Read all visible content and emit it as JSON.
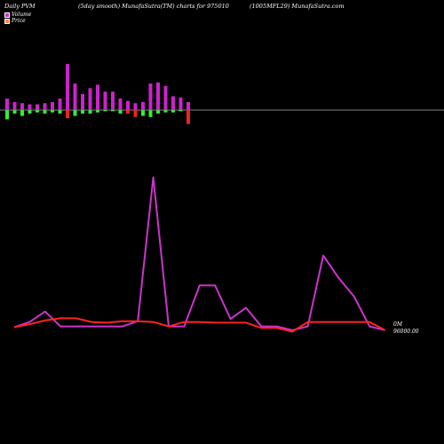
{
  "header": {
    "left": "Daily PVM",
    "center_left": "(5day smooth) MunafaSutra(TM) charts for 975010",
    "center_right": "(1005MFL29) MunafaSutra.com"
  },
  "legend": [
    {
      "label": "Volume",
      "color": "#cc33cc"
    },
    {
      "label": "Price",
      "color": "#ff8844"
    }
  ],
  "chart_data": {
    "type": "bar",
    "volume": {
      "up_values": [
        10,
        7,
        6,
        5,
        5,
        6,
        7,
        10,
        40,
        23,
        14,
        19,
        22,
        16,
        16,
        10,
        8,
        6,
        7,
        23,
        24,
        21,
        12,
        11,
        7
      ],
      "down_values": [
        -8,
        -3,
        -5,
        -3,
        -2,
        -3,
        -2,
        -3,
        -7,
        -5,
        -3,
        -3,
        -2,
        -1,
        -1,
        -3,
        -3,
        -6,
        -5,
        -6,
        -3,
        -2,
        -2,
        -1,
        -12
      ],
      "down_colors": [
        "#33ee33",
        "#33ee33",
        "#33ee33",
        "#33ee33",
        "#33ee33",
        "#33ee33",
        "#33ee33",
        "#33ee33",
        "#ee2222",
        "#33ee33",
        "#33ee33",
        "#33ee33",
        "#33ee33",
        "#33ee33",
        "#33ee33",
        "#33ee33",
        "#ee2222",
        "#ee2222",
        "#33ee33",
        "#33ee33",
        "#33ee33",
        "#33ee33",
        "#33ee33",
        "#33ee33",
        "#ee2222"
      ]
    },
    "price_line": {
      "color": "#ff2222",
      "values": [
        0.9,
        1.3,
        1.8,
        2.1,
        2.1,
        1.6,
        1.5,
        1.7,
        1.7,
        1.6,
        1.0,
        1.6,
        1.6,
        1.5,
        1.5,
        1.5,
        0.8,
        0.8,
        0.3,
        1.6,
        1.6,
        1.6,
        1.6,
        1.6,
        0.5
      ]
    },
    "volume_line": {
      "color": "#cc33cc",
      "values": [
        0.9,
        1.6,
        3.0,
        1.0,
        1.0,
        1.0,
        1.0,
        1.0,
        1.7,
        21.0,
        1.0,
        1.0,
        6.5,
        6.5,
        2.0,
        3.5,
        1.0,
        1.0,
        0.5,
        1.0,
        10.5,
        7.5,
        5.0,
        1.0,
        0.5
      ]
    },
    "labels": {
      "volume_axis": "0M",
      "price_axis": "96000.00"
    },
    "grid": false
  }
}
